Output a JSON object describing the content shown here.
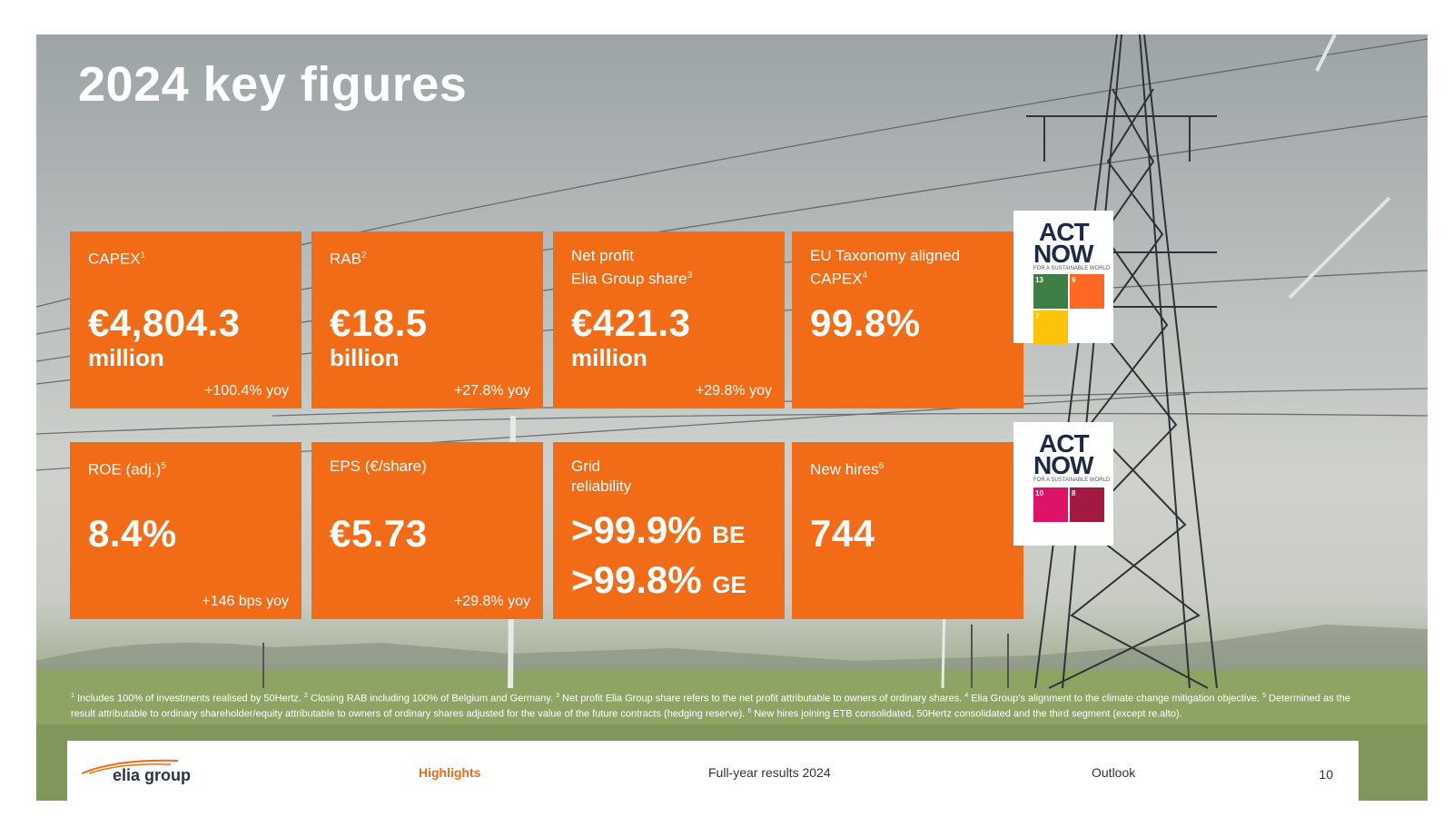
{
  "title": "2024 key figures",
  "colors": {
    "accent": "#f26b16",
    "text_light": "#ffffff",
    "logo": "#2b3546"
  },
  "cards": [
    {
      "label": "CAPEX",
      "sup": "1",
      "value": "€4,804.3",
      "unit": "million",
      "yoy": "+100.4% yoy"
    },
    {
      "label": "RAB",
      "sup": "2",
      "value": "€18.5",
      "unit": "billion",
      "yoy": "+27.8% yoy"
    },
    {
      "label": "Net profit\nElia Group share",
      "sup": "3",
      "value": "€421.3",
      "unit": "million",
      "yoy": "+29.8% yoy"
    },
    {
      "label": "EU Taxonomy aligned\nCAPEX",
      "sup": "4",
      "value": "99.8%",
      "unit": "",
      "yoy": ""
    },
    {
      "label": "ROE (adj.)",
      "sup": "5",
      "value": "8.4%",
      "unit": "",
      "yoy": "+146 bps yoy"
    },
    {
      "label": "EPS (€/share)",
      "sup": "",
      "value": "€5.73",
      "unit": "",
      "yoy": "+29.8% yoy"
    },
    {
      "label": "Grid\nreliability",
      "sup": "",
      "rows": [
        {
          "value": ">99.9%",
          "country": "BE"
        },
        {
          "value": ">99.8%",
          "country": "GE"
        }
      ]
    },
    {
      "label": "New hires",
      "sup": "6",
      "value": "744",
      "unit": "",
      "yoy": ""
    }
  ],
  "sdg_badges": [
    {
      "logo_top": "ACT",
      "logo_bottom": "NOW",
      "tagline": "FOR A SUSTAINABLE WORLD",
      "goals": [
        "13",
        "9",
        "7"
      ]
    },
    {
      "logo_top": "ACT",
      "logo_bottom": "NOW",
      "tagline": "FOR A SUSTAINABLE WORLD",
      "goals": [
        "10",
        "8"
      ]
    }
  ],
  "footnotes": [
    {
      "sup": "1",
      "text": " Includes 100% of investments realised by 50Hertz. "
    },
    {
      "sup": "2",
      "text": " Closing RAB including 100% of Belgium and Germany. "
    },
    {
      "sup": "3",
      "text": " Net profit Elia Group share refers to the net profit attributable to owners of ordinary shares. "
    },
    {
      "sup": "4",
      "text": " Elia Group’s alignment to the climate change mitigation objective. "
    },
    {
      "sup": "5",
      "text": " Determined as the result attributable to ordinary shareholder/equity attributable to owners of ordinary shares adjusted for the value of the future contracts (hedging reserve). "
    },
    {
      "sup": "6",
      "text": " New hires joining ETB consolidated, 50Hertz consolidated and the third segment (except re.alto)."
    }
  ],
  "footer": {
    "logo": "elia group",
    "nav": [
      "Highlights",
      "Full-year results 2024",
      "Outlook"
    ],
    "active": "Highlights",
    "page": "10"
  }
}
